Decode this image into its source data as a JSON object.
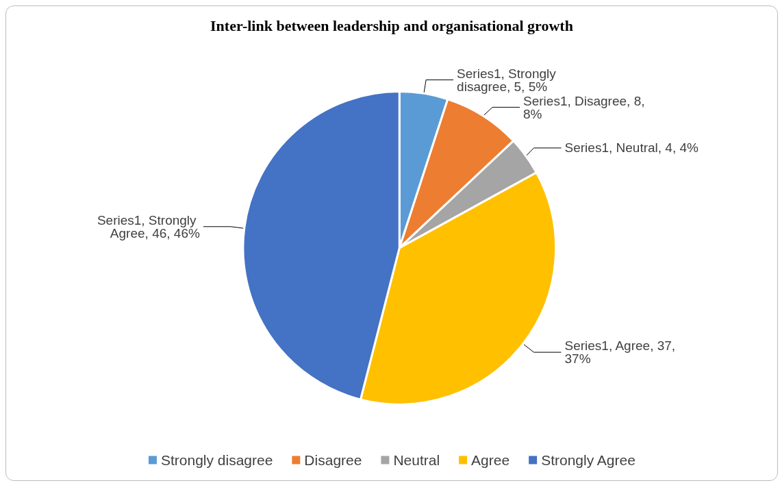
{
  "chart_data": {
    "type": "pie",
    "title": "Inter-link between leadership and organisational growth",
    "categories": [
      "Strongly disagree",
      "Disagree",
      "Neutral",
      "Agree",
      "Strongly Agree"
    ],
    "values": [
      5,
      8,
      4,
      37,
      46
    ],
    "colors": [
      "#5b9bd5",
      "#ed7d31",
      "#a5a5a5",
      "#ffc000",
      "#4472c4"
    ],
    "value_labels": [
      "Series1, Strongly disagree, 5, 5%",
      "Series1, Disagree, 8, 8%",
      "Series1, Neutral, 4, 4%",
      "Series1, Agree, 37, 37%",
      "Series1, Strongly Agree, 46, 46%"
    ],
    "legend": "bottom"
  }
}
